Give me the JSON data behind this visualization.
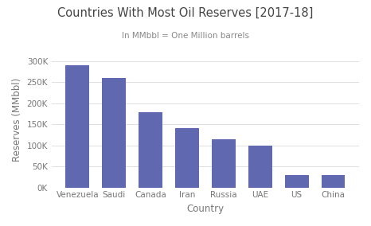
{
  "title": "Countries With Most Oil Reserves [2017-18]",
  "subtitle": "In MMbbl = One Million barrels",
  "xlabel": "Country",
  "ylabel": "Reserves (MMbbl)",
  "categories": [
    "Venezuela",
    "Saudi",
    "Canada",
    "Iran",
    "Russia",
    "UAE",
    "US",
    "China"
  ],
  "values": [
    290000,
    260000,
    178000,
    140000,
    115000,
    100000,
    30000,
    30000
  ],
  "bar_color": "#6068b0",
  "background_color": "#ffffff",
  "plot_bg_color": "#ffffff",
  "ylim": [
    0,
    320000
  ],
  "yticks": [
    0,
    50000,
    100000,
    150000,
    200000,
    250000,
    300000
  ],
  "ytick_labels": [
    "0K",
    "50K",
    "100K",
    "150K",
    "200K",
    "250K",
    "300K"
  ],
  "title_fontsize": 10.5,
  "subtitle_fontsize": 7.5,
  "axis_label_fontsize": 8.5,
  "tick_fontsize": 7.5,
  "grid_color": "#e0e0e0",
  "title_color": "#444444",
  "subtitle_color": "#888888",
  "text_color": "#888888",
  "axis_text_color": "#777777"
}
